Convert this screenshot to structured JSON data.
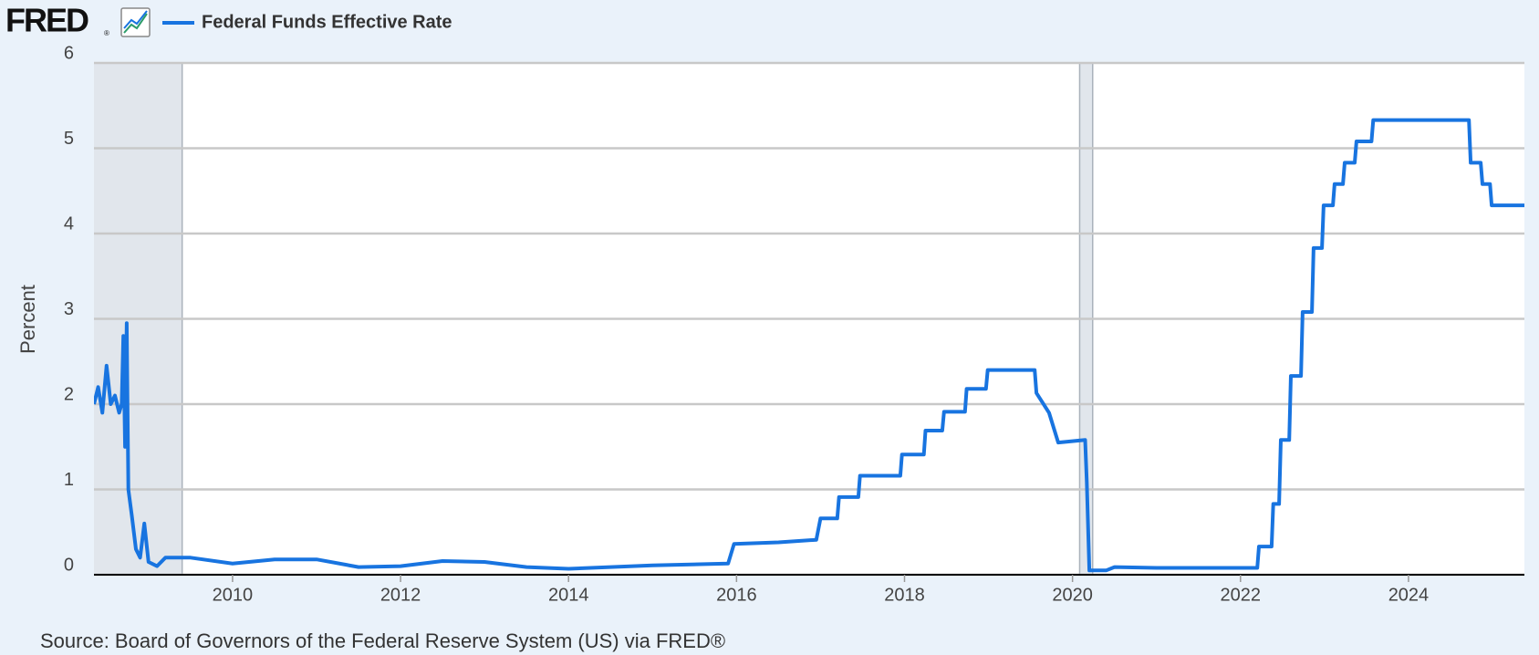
{
  "chart_data": {
    "type": "line",
    "logo": "FRED",
    "logo_mark": "®",
    "ylabel": "Percent",
    "source": "Source: Board of Governors of the Federal Reserve System (US) via FRED®",
    "xlim": [
      2008.35,
      2025.38
    ],
    "ylim": [
      0,
      6
    ],
    "xticks": [
      2010,
      2012,
      2014,
      2016,
      2018,
      2020,
      2022,
      2024
    ],
    "yticks": [
      0,
      1,
      2,
      3,
      4,
      5,
      6
    ],
    "grid": true,
    "legend": "top-left",
    "recessions": [
      [
        2007.92,
        2009.4
      ],
      [
        2020.085,
        2020.24
      ]
    ],
    "x": [
      2008.35,
      2008.4,
      2008.45,
      2008.5,
      2008.55,
      2008.6,
      2008.65,
      2008.68,
      2008.7,
      2008.72,
      2008.74,
      2008.76,
      2008.8,
      2008.85,
      2008.9,
      2008.95,
      2009.0,
      2009.1,
      2009.2,
      2009.5,
      2010,
      2010.5,
      2011,
      2011.5,
      2012,
      2012.5,
      2013,
      2013.5,
      2014,
      2014.5,
      2015,
      2015.9,
      2015.97,
      2016.5,
      2016.95,
      2017.0,
      2017.2,
      2017.22,
      2017.45,
      2017.47,
      2017.95,
      2017.97,
      2018.23,
      2018.25,
      2018.45,
      2018.47,
      2018.72,
      2018.74,
      2018.97,
      2018.99,
      2019.55,
      2019.57,
      2019.72,
      2019.83,
      2020.15,
      2020.17,
      2020.2,
      2020.4,
      2020.5,
      2021,
      2021.5,
      2022.2,
      2022.22,
      2022.37,
      2022.39,
      2022.46,
      2022.48,
      2022.58,
      2022.6,
      2022.72,
      2022.74,
      2022.85,
      2022.87,
      2022.97,
      2022.99,
      2023.1,
      2023.12,
      2023.22,
      2023.24,
      2023.36,
      2023.38,
      2023.56,
      2023.58,
      2024.72,
      2024.74,
      2024.86,
      2024.88,
      2024.97,
      2024.99,
      2025.38
    ],
    "series": [
      {
        "name": "Federal Funds Effective Rate",
        "color": "#1874e0",
        "values": [
          2.0,
          2.2,
          1.9,
          2.45,
          2.0,
          2.1,
          1.9,
          2.0,
          2.8,
          1.5,
          2.95,
          1.0,
          0.7,
          0.3,
          0.2,
          0.6,
          0.15,
          0.1,
          0.2,
          0.2,
          0.13,
          0.18,
          0.18,
          0.09,
          0.1,
          0.16,
          0.15,
          0.09,
          0.07,
          0.09,
          0.11,
          0.13,
          0.36,
          0.38,
          0.41,
          0.66,
          0.66,
          0.91,
          0.91,
          1.16,
          1.16,
          1.41,
          1.41,
          1.69,
          1.69,
          1.91,
          1.91,
          2.18,
          2.18,
          2.4,
          2.4,
          2.13,
          1.9,
          1.55,
          1.58,
          1.09,
          0.05,
          0.05,
          0.09,
          0.08,
          0.08,
          0.08,
          0.33,
          0.33,
          0.83,
          0.83,
          1.58,
          1.58,
          2.33,
          2.33,
          3.08,
          3.08,
          3.83,
          3.83,
          4.33,
          4.33,
          4.58,
          4.58,
          4.83,
          4.83,
          5.08,
          5.08,
          5.33,
          5.33,
          4.83,
          4.83,
          4.58,
          4.58,
          4.33,
          4.33
        ]
      }
    ]
  }
}
